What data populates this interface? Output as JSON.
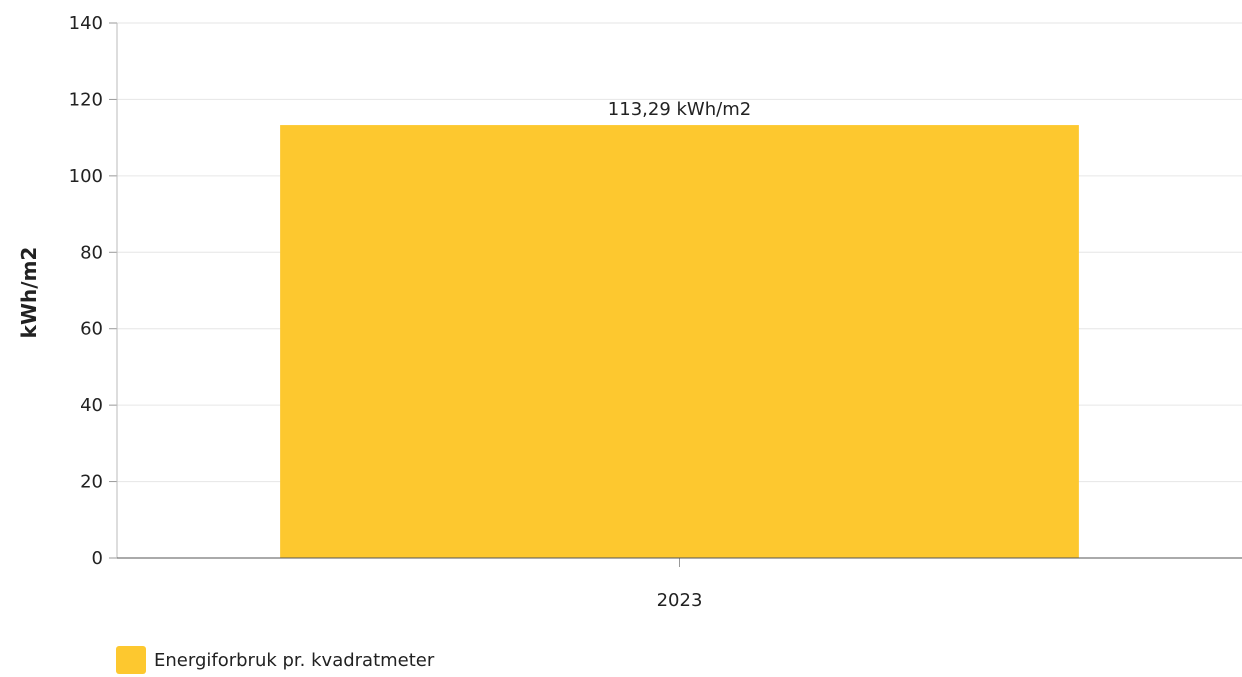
{
  "chart_data": {
    "type": "bar",
    "categories": [
      "2023"
    ],
    "series": [
      {
        "name": "Energiforbruk pr. kvadratmeter",
        "values": [
          113.29
        ],
        "color": "#fdc82f"
      }
    ],
    "data_labels": [
      "113,29 kWh/m2"
    ],
    "ylabel": "kWh/m2",
    "xlabel": "",
    "ylim": [
      0,
      140
    ],
    "yticks": [
      0,
      20,
      40,
      60,
      80,
      100,
      120,
      140
    ],
    "grid": true,
    "legend_position": "bottom-left"
  }
}
